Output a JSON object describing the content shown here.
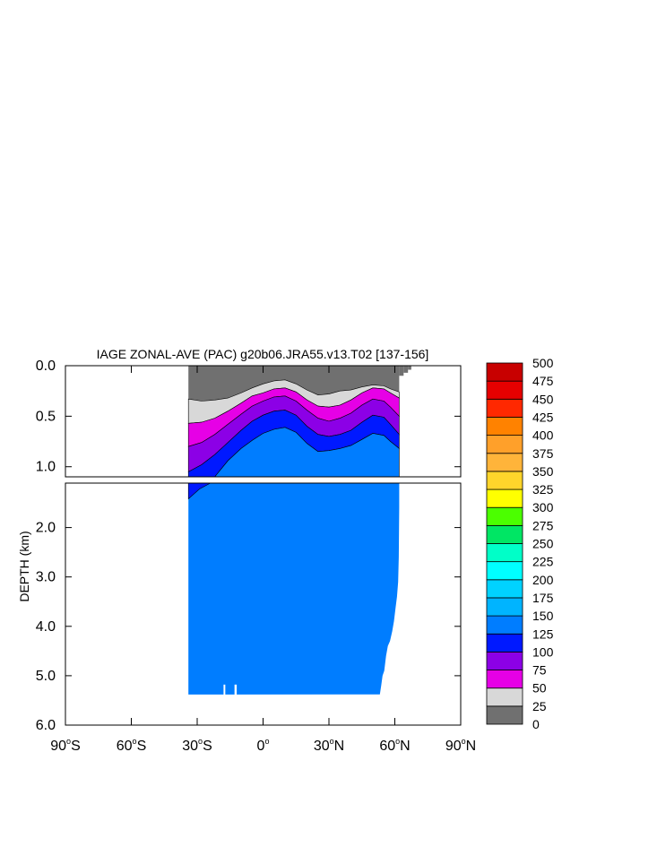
{
  "chart_data": {
    "type": "heatmap",
    "title": "IAGE ZONAL-AVE (PAC) g20b06.JRA55.v13.T02 [137-156]",
    "xlabel": "",
    "ylabel": "DEPTH (km)",
    "x_range": [
      -90,
      90
    ],
    "y_range_upper_km": [
      0.0,
      1.1
    ],
    "y_range_lower_km": [
      1.1,
      6.0
    ],
    "x_ticks": [
      {
        "value": -90,
        "num": "90",
        "hemi": "S"
      },
      {
        "value": -60,
        "num": "60",
        "hemi": "S"
      },
      {
        "value": -30,
        "num": "30",
        "hemi": "S"
      },
      {
        "value": 0,
        "num": "0",
        "hemi": ""
      },
      {
        "value": 30,
        "num": "30",
        "hemi": "N"
      },
      {
        "value": 60,
        "num": "60",
        "hemi": "N"
      },
      {
        "value": 90,
        "num": "90",
        "hemi": "N"
      }
    ],
    "y_ticks_upper": [
      {
        "value": 0.0,
        "label": "0.0"
      },
      {
        "value": 0.5,
        "label": "0.5"
      },
      {
        "value": 1.0,
        "label": "1.0"
      }
    ],
    "y_ticks_lower": [
      {
        "value": 2.0,
        "label": "2.0"
      },
      {
        "value": 3.0,
        "label": "3.0"
      },
      {
        "value": 4.0,
        "label": "4.0"
      },
      {
        "value": 5.0,
        "label": "5.0"
      },
      {
        "value": 6.0,
        "label": "6.0"
      }
    ],
    "colorbar": {
      "levels": [
        "0",
        "25",
        "50",
        "75",
        "100",
        "125",
        "150",
        "175",
        "200",
        "225",
        "250",
        "275",
        "300",
        "325",
        "350",
        "375",
        "400",
        "425",
        "450",
        "475",
        "500"
      ],
      "colors": [
        "#707070",
        "#d8d8d8",
        "#e600e6",
        "#8c00e6",
        "#0019ff",
        "#007dff",
        "#00b4ff",
        "#00d2ff",
        "#00ffff",
        "#00ffc8",
        "#00e664",
        "#4bff00",
        "#ffff00",
        "#ffd52b",
        "#ffb43a",
        "#ffa02a",
        "#ff8200",
        "#ff2800",
        "#e60000",
        "#c80000"
      ]
    },
    "land_mask": {
      "lat_start": -34,
      "lat_end_surface": 62,
      "bottom_depth_km": 5.38
    },
    "band_bounds": {
      "lat": [
        -34,
        -28,
        -22,
        -16,
        -10,
        -5,
        0,
        5,
        10,
        15,
        20,
        25,
        30,
        35,
        40,
        45,
        50,
        55,
        58,
        62
      ],
      "b25": [
        0.33,
        0.35,
        0.34,
        0.32,
        0.27,
        0.22,
        0.18,
        0.15,
        0.14,
        0.18,
        0.24,
        0.29,
        0.28,
        0.25,
        0.24,
        0.21,
        0.19,
        0.2,
        0.23,
        0.26
      ],
      "b50": [
        0.57,
        0.56,
        0.52,
        0.45,
        0.37,
        0.3,
        0.27,
        0.23,
        0.22,
        0.26,
        0.34,
        0.4,
        0.41,
        0.39,
        0.34,
        0.27,
        0.22,
        0.23,
        0.27,
        0.32
      ],
      "b75": [
        0.8,
        0.76,
        0.68,
        0.58,
        0.48,
        0.4,
        0.35,
        0.31,
        0.3,
        0.35,
        0.44,
        0.52,
        0.55,
        0.52,
        0.47,
        0.39,
        0.33,
        0.35,
        0.41,
        0.5
      ],
      "b100": [
        1.05,
        0.98,
        0.88,
        0.76,
        0.64,
        0.55,
        0.49,
        0.45,
        0.44,
        0.49,
        0.6,
        0.68,
        0.7,
        0.68,
        0.64,
        0.56,
        0.49,
        0.51,
        0.58,
        0.68
      ],
      "b125": [
        1.4,
        1.28,
        1.1,
        0.94,
        0.82,
        0.74,
        0.67,
        0.63,
        0.61,
        0.66,
        0.77,
        0.85,
        0.84,
        0.82,
        0.79,
        0.73,
        0.67,
        0.69,
        0.75,
        0.82
      ]
    }
  }
}
